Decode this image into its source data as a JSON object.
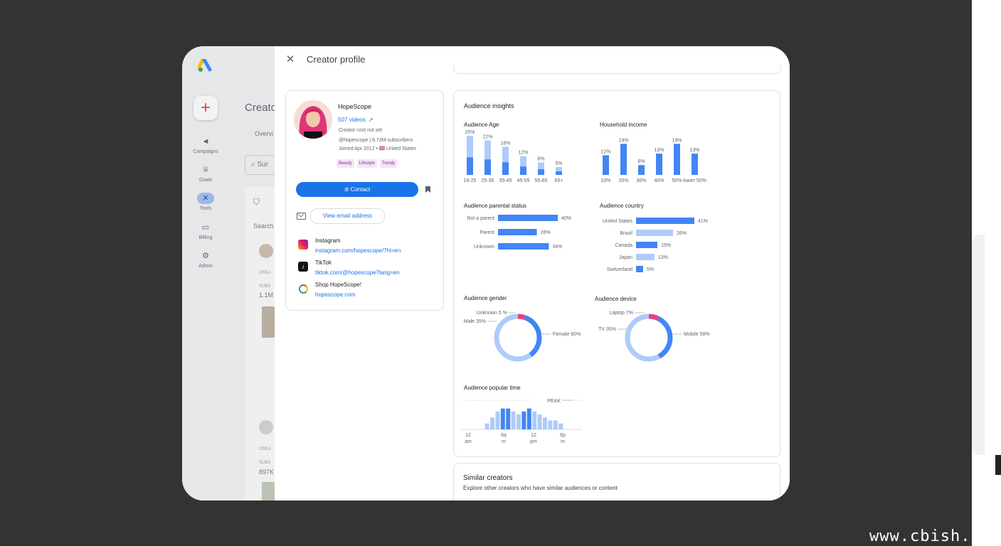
{
  "watermark": "www.cbish.c",
  "background_app": {
    "title": "Creator",
    "tab": "Overvi",
    "search_placeholder": "Sur",
    "search_label": "Search",
    "nav": [
      {
        "label": "Campaigns",
        "icon": "megaphone-icon"
      },
      {
        "label": "Goals",
        "icon": "trophy-icon"
      },
      {
        "label": "Tools",
        "icon": "tools-icon"
      },
      {
        "label": "Billing",
        "icon": "credit-card-icon"
      },
      {
        "label": "Admin",
        "icon": "gear-icon"
      }
    ],
    "list": [
      {
        "label1": "CREA",
        "label2": "SUBS",
        "value": "1.1M"
      },
      {
        "label1": "CREA",
        "label2": "SUBS",
        "value": "897K"
      }
    ]
  },
  "panel": {
    "title": "Creator profile",
    "close_icon": "close-icon"
  },
  "profile": {
    "name": "HopeScope",
    "videos": "507 videos",
    "cost": "Creator cost not set",
    "handle": "@hopescope | 6.73M subscribers",
    "joined_prefix": "Joined Apr 2012 • ",
    "country": "United States",
    "tags": [
      "Beauty",
      "Lifestyle",
      "Trendy"
    ],
    "contact_label": "Contact",
    "email_label": "View email address",
    "socials": [
      {
        "name": "Instagram",
        "link": "instagram.com/hopescope/?hl=en",
        "icon": "instagram-icon"
      },
      {
        "name": "TikTok",
        "link": "tiktok.com/@hopescope?lang=en",
        "icon": "tiktok-icon"
      },
      {
        "name": "Shop HopeScope!",
        "link": "hopescope.com",
        "icon": "shop-icon"
      }
    ]
  },
  "insights": {
    "title": "Audience insights",
    "age_title": "Audience Age",
    "income_title": "Household income",
    "parental_title": "Audience parental status",
    "country_title": "Audience country",
    "gender_title": "Audience gender",
    "device_title": "Audience device",
    "time_title": "Audience popular time"
  },
  "similar": {
    "title": "Similar creators",
    "subtitle": "Explore other creators who have similar audiences or content"
  },
  "chart_data": [
    {
      "type": "bar",
      "title": "Audience Age",
      "categories": [
        "18-25",
        "25-35",
        "35-45",
        "45-55",
        "55-65",
        "65+"
      ],
      "values": [
        25,
        22,
        18,
        12,
        8,
        5
      ],
      "labels": [
        "25%",
        "22%",
        "18%",
        "12%",
        "8%",
        "5%"
      ],
      "colors": {
        "dark": "#4285f4",
        "light": "#aecbfa"
      }
    },
    {
      "type": "bar",
      "title": "Household income",
      "categories": [
        "10%",
        "20%",
        "30%",
        "40%",
        "50%",
        "lower 50%"
      ],
      "values": [
        12,
        19,
        6,
        13,
        19,
        13
      ],
      "labels": [
        "12%",
        "19%",
        "6%",
        "13%",
        "19%",
        "13%"
      ],
      "colors": {
        "dark": "#4285f4"
      }
    },
    {
      "type": "bar",
      "orientation": "horizontal",
      "title": "Audience parental status",
      "categories": [
        "Not a parent",
        "Parent",
        "Unknown"
      ],
      "values": [
        40,
        26,
        34
      ],
      "labels": [
        "40%",
        "26%",
        "34%"
      ],
      "colors": {
        "dark": "#4285f4"
      }
    },
    {
      "type": "bar",
      "orientation": "horizontal",
      "title": "Audience country",
      "categories": [
        "United States",
        "Brazil",
        "Canada",
        "Japan",
        "Switzerland"
      ],
      "values": [
        41,
        26,
        15,
        13,
        5
      ],
      "labels": [
        "41%",
        "26%",
        "15%",
        "13%",
        "5%"
      ],
      "series_colors": [
        "#4285f4",
        "#aecbfa",
        "#4285f4",
        "#aecbfa",
        "#4285f4"
      ]
    },
    {
      "type": "pie",
      "title": "Audience gender",
      "categories": [
        "Unknown",
        "Male",
        "Female"
      ],
      "values": [
        5,
        35,
        60
      ],
      "labels": [
        "Unknown 5 %",
        "Male 35%",
        "Female 60%"
      ],
      "series_colors": [
        "#e8437d",
        "#4285f4",
        "#aecbfa"
      ]
    },
    {
      "type": "pie",
      "title": "Audience device",
      "categories": [
        "Laptop",
        "TV",
        "Mobile"
      ],
      "values": [
        7,
        35,
        58
      ],
      "labels": [
        "Laptop 7%",
        "TV 35%",
        "Mobile 58%"
      ],
      "series_colors": [
        "#e8437d",
        "#4285f4",
        "#aecbfa"
      ]
    },
    {
      "type": "bar",
      "title": "Audience popular time",
      "values": [
        0,
        0,
        0,
        0,
        2,
        4,
        6,
        7,
        7,
        6,
        5,
        6,
        7,
        6,
        5,
        4,
        3,
        3,
        2,
        0,
        0,
        0,
        0,
        0
      ],
      "highlight": [
        7,
        8,
        11,
        12
      ],
      "tick_labels": [
        [
          "12",
          "am"
        ],
        [
          "6a",
          "m"
        ],
        [
          "12",
          "pm"
        ],
        [
          "6p",
          "m"
        ]
      ],
      "annotation": "PEAK",
      "colors": {
        "dark": "#4285f4",
        "light": "#aecbfa"
      }
    }
  ]
}
